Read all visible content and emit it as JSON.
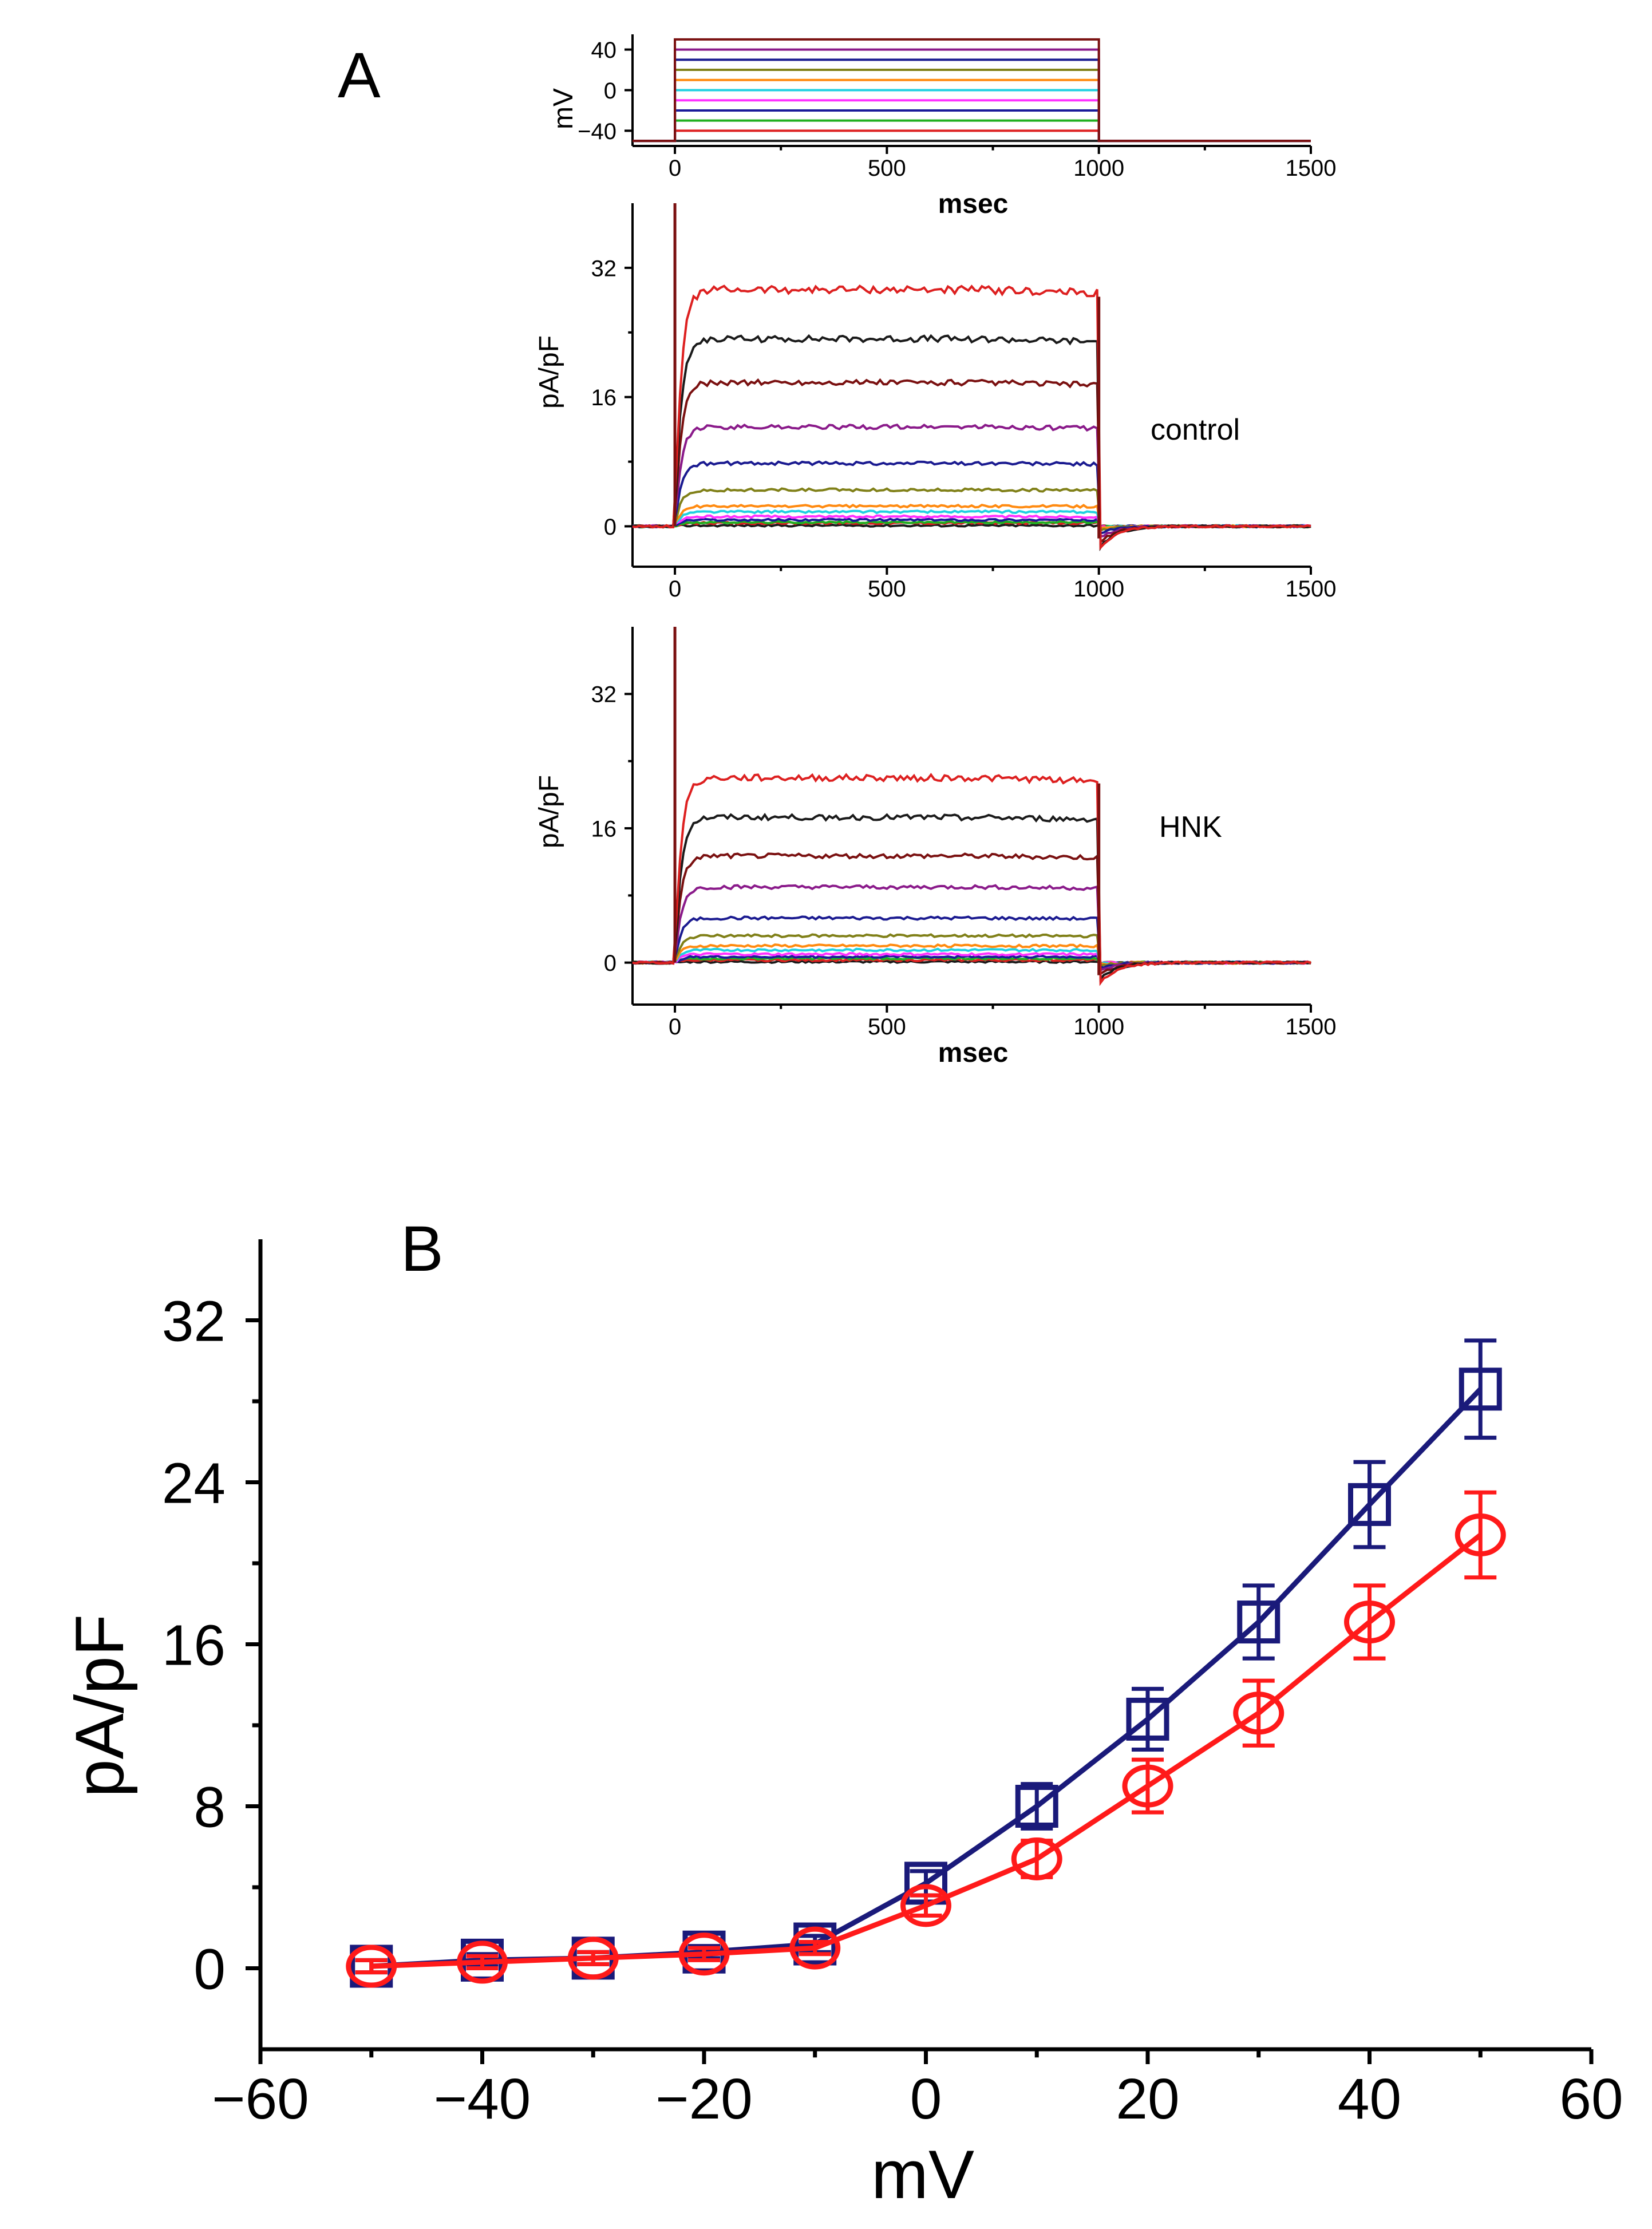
{
  "colors": {
    "axis": "#000000",
    "control": "#1a1a7a",
    "hnk": "#ff1a1a",
    "traces": [
      "#1a1a1a",
      "#dd2020",
      "#20b020",
      "#1a1a9a",
      "#ff30ff",
      "#20d0e0",
      "#ff8a10",
      "#808018",
      "#1a1a90",
      "#8a1a8a",
      "#7a1010"
    ]
  },
  "chart_data": [
    {
      "id": "A-protocol",
      "type": "line",
      "panel_label": "A",
      "title": "",
      "xlabel": "msec",
      "ylabel": "mV",
      "xlim": [
        -100,
        1500
      ],
      "ylim": [
        -55,
        55
      ],
      "xticks": [
        0,
        500,
        1000,
        1500
      ],
      "yticks": [
        -40,
        0,
        40
      ],
      "ytick_labels": [
        "−40",
        "0",
        "40"
      ],
      "step": {
        "holding_mv": -50,
        "start_ms": 0,
        "end_ms": 1000
      },
      "series": [
        {
          "name": "-50 mV",
          "step_mv": -50
        },
        {
          "name": "-40 mV",
          "step_mv": -40
        },
        {
          "name": "-30 mV",
          "step_mv": -30
        },
        {
          "name": "-20 mV",
          "step_mv": -20
        },
        {
          "name": "-10 mV",
          "step_mv": -10
        },
        {
          "name": "0 mV",
          "step_mv": 0
        },
        {
          "name": "10 mV",
          "step_mv": 10
        },
        {
          "name": "20 mV",
          "step_mv": 20
        },
        {
          "name": "30 mV",
          "step_mv": 30
        },
        {
          "name": "40 mV",
          "step_mv": 40
        },
        {
          "name": "50 mV",
          "step_mv": 50
        }
      ]
    },
    {
      "id": "A-control",
      "type": "line",
      "annotation": "control",
      "xlabel": "",
      "ylabel": "pA/pF",
      "xlim": [
        -100,
        1500
      ],
      "ylim": [
        -5,
        40
      ],
      "xticks": [
        0,
        500,
        1000,
        1500
      ],
      "yticks": [
        0,
        16,
        32
      ],
      "step": {
        "start_ms": 0,
        "end_ms": 1000
      },
      "series": [
        {
          "name": "-50 mV",
          "steady_pA_pF": 0.1
        },
        {
          "name": "-40 mV",
          "steady_pA_pF": 0.4
        },
        {
          "name": "-30 mV",
          "steady_pA_pF": 0.5
        },
        {
          "name": "-20 mV",
          "steady_pA_pF": 0.8
        },
        {
          "name": "-10 mV",
          "steady_pA_pF": 1.2
        },
        {
          "name": "0 mV",
          "steady_pA_pF": 1.8
        },
        {
          "name": "10 mV",
          "steady_pA_pF": 2.5
        },
        {
          "name": "20 mV",
          "steady_pA_pF": 4.5
        },
        {
          "name": "30 mV",
          "steady_pA_pF": 7.8
        },
        {
          "name": "40 mV",
          "steady_pA_pF": 12.3
        },
        {
          "name": "45 mV",
          "steady_pA_pF": 17.8
        },
        {
          "name": "50 mV",
          "steady_pA_pF": 23.2
        },
        {
          "name": "peak",
          "steady_pA_pF": 29.3
        }
      ]
    },
    {
      "id": "A-hnk",
      "type": "line",
      "annotation": "HNK",
      "xlabel": "msec",
      "ylabel": "pA/pF",
      "xlim": [
        -100,
        1500
      ],
      "ylim": [
        -5,
        40
      ],
      "xticks": [
        0,
        500,
        1000,
        1500
      ],
      "yticks": [
        0,
        16,
        32
      ],
      "step": {
        "start_ms": 0,
        "end_ms": 1000
      },
      "series": [
        {
          "name": "-50 mV",
          "steady_pA_pF": 0.1
        },
        {
          "name": "-40 mV",
          "steady_pA_pF": 0.3
        },
        {
          "name": "-30 mV",
          "steady_pA_pF": 0.5
        },
        {
          "name": "-20 mV",
          "steady_pA_pF": 0.7
        },
        {
          "name": "-10 mV",
          "steady_pA_pF": 1.0
        },
        {
          "name": "0 mV",
          "steady_pA_pF": 1.5
        },
        {
          "name": "10 mV",
          "steady_pA_pF": 2.0
        },
        {
          "name": "20 mV",
          "steady_pA_pF": 3.2
        },
        {
          "name": "30 mV",
          "steady_pA_pF": 5.3
        },
        {
          "name": "40 mV",
          "steady_pA_pF": 9.0
        },
        {
          "name": "45 mV",
          "steady_pA_pF": 12.7
        },
        {
          "name": "50 mV",
          "steady_pA_pF": 17.3
        },
        {
          "name": "peak",
          "steady_pA_pF": 22.0
        }
      ]
    },
    {
      "id": "B-iv",
      "type": "line",
      "panel_label": "B",
      "title": "",
      "xlabel": "mV",
      "ylabel": "pA/pF",
      "xlim": [
        -60,
        60
      ],
      "ylim": [
        -4,
        36
      ],
      "xticks": [
        -60,
        -40,
        -20,
        0,
        20,
        40,
        60
      ],
      "xtick_labels": [
        "−60",
        "−40",
        "−20",
        "0",
        "20",
        "40",
        "60"
      ],
      "yticks": [
        0,
        8,
        16,
        24,
        32
      ],
      "x": [
        -50,
        -40,
        -30,
        -20,
        -10,
        0,
        10,
        20,
        30,
        40,
        50
      ],
      "series": [
        {
          "name": "control",
          "marker": "square",
          "values": [
            0.1,
            0.4,
            0.5,
            0.8,
            1.2,
            4.2,
            8.0,
            12.3,
            17.1,
            22.9,
            28.6
          ],
          "errors": [
            0.3,
            0.3,
            0.3,
            0.3,
            0.4,
            0.6,
            1.1,
            1.5,
            1.8,
            2.1,
            2.4
          ]
        },
        {
          "name": "HNK",
          "marker": "circle",
          "values": [
            0.1,
            0.3,
            0.5,
            0.7,
            1.0,
            3.1,
            5.4,
            9.0,
            12.6,
            17.1,
            21.4
          ],
          "errors": [
            0.3,
            0.3,
            0.3,
            0.3,
            0.3,
            0.5,
            0.9,
            1.3,
            1.6,
            1.8,
            2.1
          ]
        }
      ]
    }
  ]
}
